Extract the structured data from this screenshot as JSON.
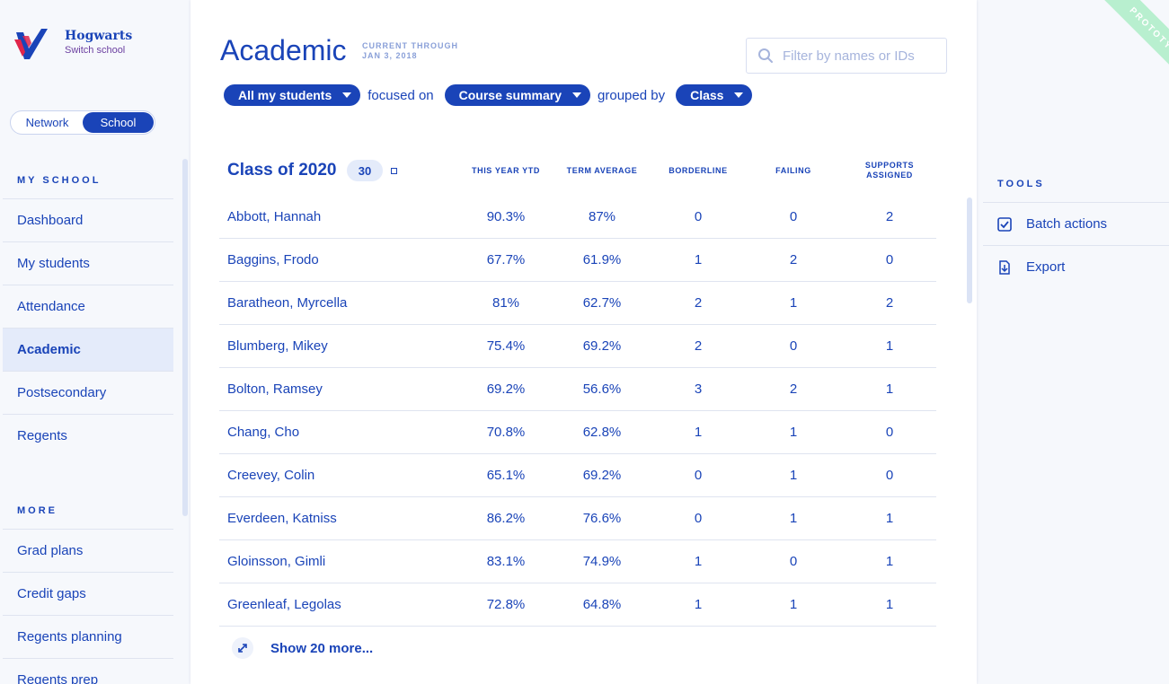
{
  "school": {
    "name": "Hogwarts",
    "switch_label": "Switch school"
  },
  "toggle": {
    "network": "Network",
    "school": "School"
  },
  "sidebar": {
    "my_school_label": "MY SCHOOL",
    "items": [
      "Dashboard",
      "My students",
      "Attendance",
      "Academic",
      "Postsecondary",
      "Regents"
    ],
    "active_item": "Academic",
    "more_label": "MORE",
    "more_items": [
      "Grad plans",
      "Credit gaps",
      "Regents planning",
      "Regents prep"
    ]
  },
  "header": {
    "title": "Academic",
    "current_through_label": "CURRENT THROUGH",
    "current_through_date": "JAN 3, 2018",
    "search_placeholder": "Filter by names or IDs"
  },
  "filters": {
    "students": "All my students",
    "focused_on_text": "focused on",
    "focus": "Course summary",
    "grouped_by_text": "grouped by",
    "group": "Class"
  },
  "table": {
    "group_title": "Class of 2020",
    "count": "30",
    "columns": [
      "THIS YEAR YTD",
      "TERM AVERAGE",
      "BORDERLINE",
      "FAILING",
      "SUPPORTS ASSIGNED"
    ],
    "rows": [
      {
        "name": "Abbott, Hannah",
        "ytd": "90.3%",
        "term": "87%",
        "borderline": "0",
        "failing": "0",
        "supports": "2"
      },
      {
        "name": "Baggins, Frodo",
        "ytd": "67.7%",
        "term": "61.9%",
        "borderline": "1",
        "failing": "2",
        "supports": "0"
      },
      {
        "name": "Baratheon, Myrcella",
        "ytd": "81%",
        "term": "62.7%",
        "borderline": "2",
        "failing": "1",
        "supports": "2"
      },
      {
        "name": "Blumberg, Mikey",
        "ytd": "75.4%",
        "term": "69.2%",
        "borderline": "2",
        "failing": "0",
        "supports": "1"
      },
      {
        "name": "Bolton, Ramsey",
        "ytd": "69.2%",
        "term": "56.6%",
        "borderline": "3",
        "failing": "2",
        "supports": "1"
      },
      {
        "name": "Chang, Cho",
        "ytd": "70.8%",
        "term": "62.8%",
        "borderline": "1",
        "failing": "1",
        "supports": "0"
      },
      {
        "name": "Creevey, Colin",
        "ytd": "65.1%",
        "term": "69.2%",
        "borderline": "0",
        "failing": "1",
        "supports": "0"
      },
      {
        "name": "Everdeen, Katniss",
        "ytd": "86.2%",
        "term": "76.6%",
        "borderline": "0",
        "failing": "1",
        "supports": "1"
      },
      {
        "name": "Gloinsson, Gimli",
        "ytd": "83.1%",
        "term": "74.9%",
        "borderline": "1",
        "failing": "0",
        "supports": "1"
      },
      {
        "name": "Greenleaf, Legolas",
        "ytd": "72.8%",
        "term": "64.8%",
        "borderline": "1",
        "failing": "1",
        "supports": "1"
      }
    ],
    "show_more": "Show 20 more..."
  },
  "tools": {
    "label": "TOOLS",
    "items": [
      {
        "label": "Batch actions",
        "icon": "checkbox-icon"
      },
      {
        "label": "Export",
        "icon": "export-icon"
      }
    ]
  },
  "ribbon": "PROTOTYPE",
  "colors": {
    "primary": "#1a44b8",
    "accent_red": "#e0254b",
    "ribbon": "#b8efcf"
  }
}
